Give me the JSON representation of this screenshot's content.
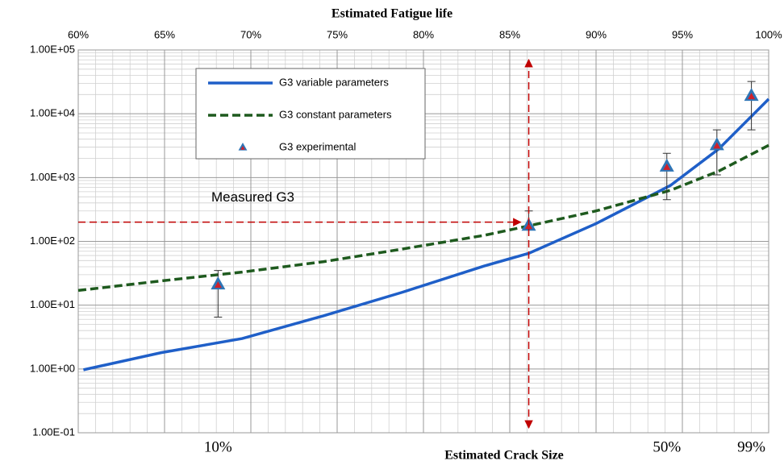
{
  "chart_data": {
    "type": "line",
    "title": "Estimated Fatigue life",
    "xlabel": "Estimated Crack Size",
    "xlim": [
      60,
      100
    ],
    "xticks": [
      {
        "value": 60,
        "label": "60%"
      },
      {
        "value": 65,
        "label": "65%"
      },
      {
        "value": 70,
        "label": "70%"
      },
      {
        "value": 75,
        "label": "75%"
      },
      {
        "value": 80,
        "label": "80%"
      },
      {
        "value": 85,
        "label": "85%"
      },
      {
        "value": 90,
        "label": "90%"
      },
      {
        "value": 95,
        "label": "95%"
      },
      {
        "value": 100,
        "label": "100%"
      }
    ],
    "ylim": [
      0.1,
      100000
    ],
    "yscale": "log",
    "yticks": [
      {
        "value": 0.1,
        "label": "1.00E-01"
      },
      {
        "value": 1,
        "label": "1.00E+00"
      },
      {
        "value": 10,
        "label": "1.00E+01"
      },
      {
        "value": 100,
        "label": "1.00E+02"
      },
      {
        "value": 1000,
        "label": "1.00E+03"
      },
      {
        "value": 10000,
        "label": "1.00E+04"
      },
      {
        "value": 100000,
        "label": "1.00E+05"
      }
    ],
    "grid": true,
    "legend": "upper center",
    "series": [
      {
        "name": "G3 variable parameters",
        "color": "#1f5fc8",
        "style": "solid",
        "x": [
          60.3,
          64.8,
          69.5,
          74.2,
          78.8,
          83.5,
          86.1,
          90,
          94.3,
          97.1,
          100
        ],
        "values": [
          0.97,
          1.8,
          3.0,
          6.8,
          16,
          41,
          65,
          190,
          750,
          2800,
          17000
        ]
      },
      {
        "name": "G3 constant parameters",
        "color": "#1e5a1e",
        "style": "dashed",
        "x": [
          60,
          64.8,
          69.5,
          74.2,
          78.8,
          83.5,
          86.1,
          90,
          94.3,
          97.1,
          100
        ],
        "values": [
          17,
          24,
          33,
          48,
          76,
          124,
          175,
          300,
          630,
          1260,
          3200
        ]
      },
      {
        "name": "G3 experimental",
        "color": "#2e75b6",
        "marker": "triangle",
        "style": "none",
        "x": [
          68.1,
          86.1,
          94.1,
          97.0,
          99.0
        ],
        "values": [
          21,
          175,
          1480,
          3200,
          19000
        ],
        "err_low": [
          6.5,
          150,
          450,
          1100,
          5600
        ],
        "err_high": [
          35,
          300,
          2400,
          5600,
          32000
        ]
      }
    ],
    "measured": {
      "label": "Measured G3",
      "value": 200,
      "x": 86.1,
      "color": "#c00000"
    },
    "bottom_labels": [
      {
        "value": 68.1,
        "label": "10%"
      },
      {
        "value": 94.1,
        "label": "50%"
      },
      {
        "value": 99.0,
        "label": "99%"
      }
    ]
  }
}
